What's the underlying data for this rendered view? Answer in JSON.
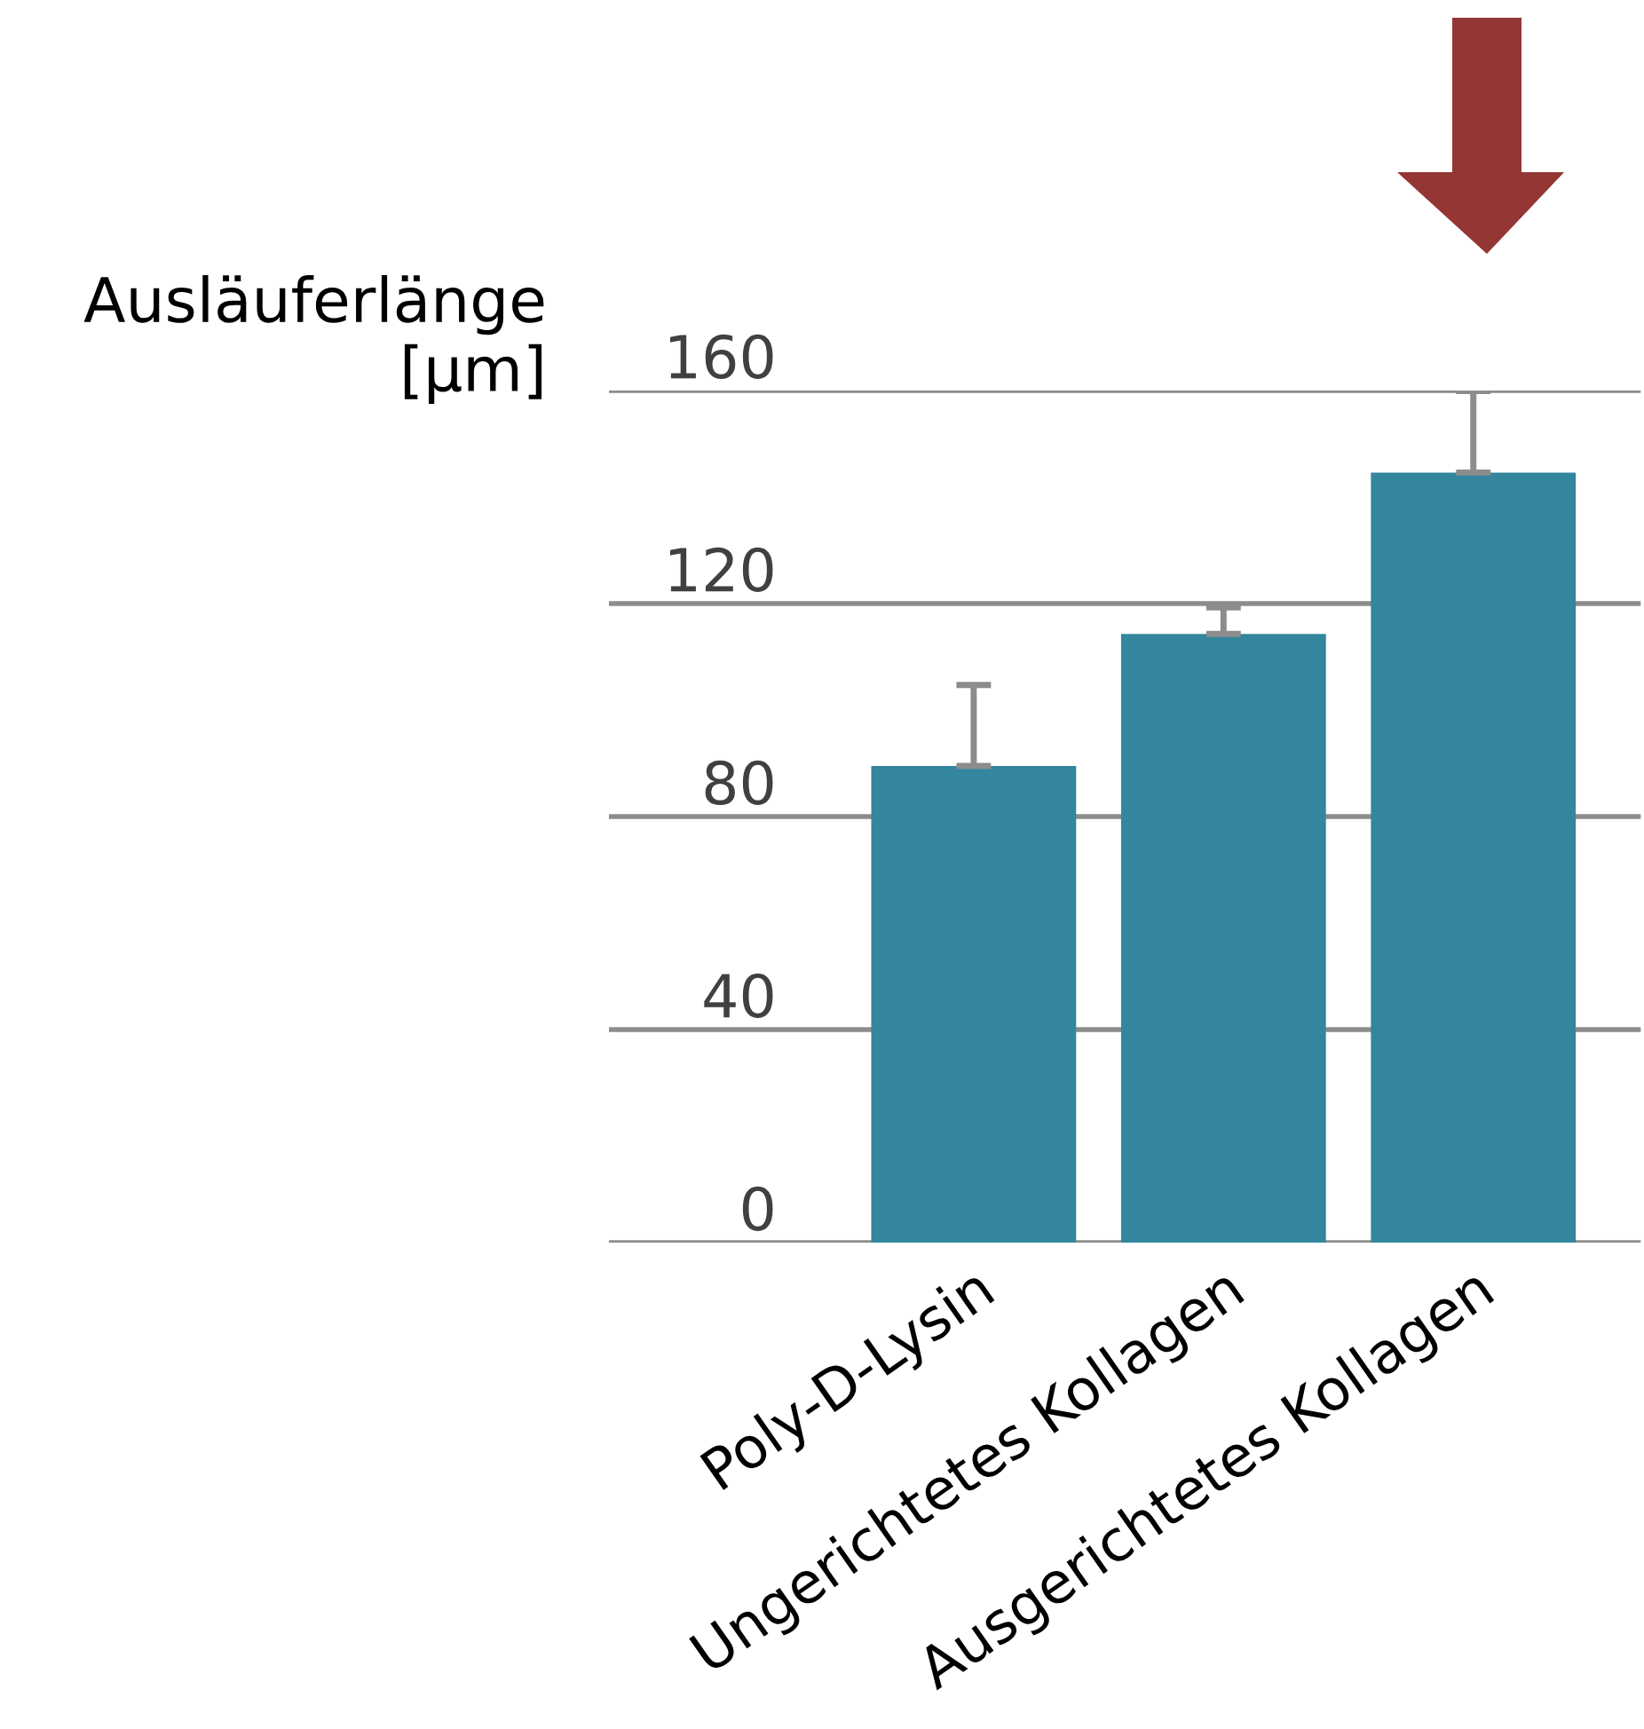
{
  "chart_data": {
    "type": "bar",
    "ylabel": "Ausläuferlänge\n[µm]",
    "categories": [
      "Poly-D-Lysin",
      "Ungerichtetes Kollagen",
      "Ausgerichtetes Kollagen"
    ],
    "values": [
      89.5,
      114.3,
      144.6
    ],
    "errors": [
      [
        89.5,
        104.7
      ],
      [
        114.3,
        119.3
      ],
      [
        144.6,
        159.9
      ]
    ],
    "color": "#33869e",
    "ylim": [
      0,
      160
    ],
    "yticks": [
      0,
      40,
      80,
      120,
      160
    ],
    "grid": "y"
  }
}
